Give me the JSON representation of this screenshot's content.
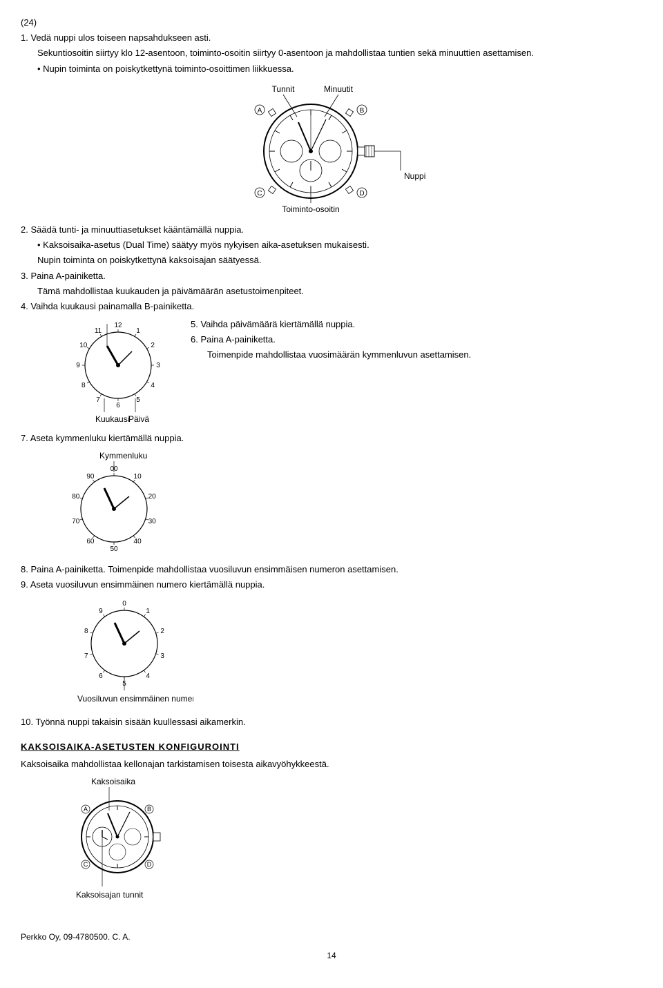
{
  "header": {
    "ref": "(24)"
  },
  "step1": {
    "num": "1.",
    "text": "Vedä nuppi ulos toiseen napsahdukseen asti.",
    "line2": "Sekuntiosoitin siirtyy klo 12-asentoon, toiminto-osoitin siirtyy 0-asentoon ja mahdollistaa tuntien sekä minuuttien asettamisen.",
    "bullet1": "Nupin toiminta on poiskytkettynä toiminto-osoittimen liikkuessa."
  },
  "watch_labels": {
    "tunnit": "Tunnit",
    "minuutit": "Minuutit",
    "nuppi": "Nuppi",
    "toiminto": "Toiminto-osoitin",
    "circled_a": "A",
    "circled_b": "B",
    "circled_c": "C",
    "circled_d": "D"
  },
  "step2": {
    "num": "2.",
    "text": "Säädä tunti- ja minuuttiasetukset kääntämällä nuppia.",
    "bullet1": "Kaksoisaika-asetus (Dual Time) säätyy myös nykyisen aika-asetuksen mukaisesti.",
    "bullet2": "Nupin toiminta on poiskytkettynä kaksoisajan säätyessä."
  },
  "step3": {
    "num": "3.",
    "text": "Paina A-painiketta.",
    "line2": "Tämä mahdollistaa kuukauden ja päivämäärän asetustoimenpiteet."
  },
  "step4": {
    "num": "4.",
    "text": "Vaihda kuukausi painamalla B-painiketta."
  },
  "month_dial": {
    "ticks": [
      "12",
      "1",
      "2",
      "3",
      "4",
      "5",
      "6",
      "7",
      "8",
      "9",
      "10",
      "11"
    ],
    "label_kuukausi": "Kuukausi",
    "label_paiva": "Päivä"
  },
  "step5": {
    "num": "5.",
    "text": "Vaihda päivämäärä kiertämällä nuppia."
  },
  "step6": {
    "num": "6.",
    "text": "Paina A-painiketta.",
    "line2": "Toimenpide mahdollistaa vuosimäärän kymmenluvun asettamisen."
  },
  "step7": {
    "num": "7.",
    "text": "Aseta kymmenluku kiertämällä nuppia."
  },
  "decade_dial": {
    "ticks": [
      "00",
      "10",
      "20",
      "30",
      "40",
      "50",
      "60",
      "70",
      "80",
      "90"
    ],
    "label": "Kymmenluku"
  },
  "step8": {
    "num": "8.",
    "text": "Paina A-painiketta. Toimenpide mahdollistaa vuosiluvun ensimmäisen numeron asettamisen."
  },
  "step9": {
    "num": "9.",
    "text": "Aseta vuosiluvun ensimmäinen numero kiertämällä nuppia."
  },
  "year_dial": {
    "ticks": [
      "0",
      "1",
      "2",
      "3",
      "4",
      "5",
      "6",
      "7",
      "8",
      "9"
    ],
    "label": "Vuosiluvun ensimmäinen numero"
  },
  "step10": {
    "num": "10.",
    "text": "Työnnä nuppi takaisin sisään kuullessasi aikamerkin."
  },
  "heading": "KAKSOISAIKA-ASETUSTEN  KONFIGUROINTI",
  "dualtime_intro": "Kaksoisaika mahdollistaa kellonajan tarkistamisen toisesta aikavyöhykkeestä.",
  "dualtime_labels": {
    "kaksoisaika": "Kaksoisaika",
    "tunnit": "Kaksoisajan tunnit"
  },
  "footer": "Perkko Oy, 09-4780500. C. A.",
  "pagenum": "14"
}
